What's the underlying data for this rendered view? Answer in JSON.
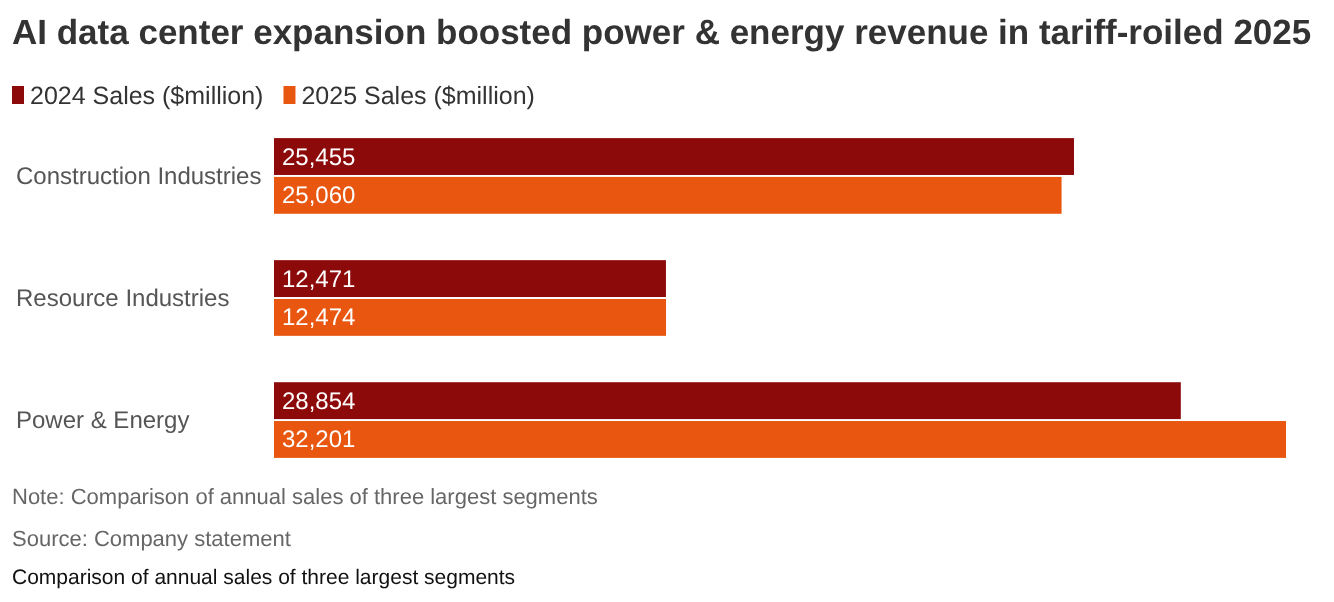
{
  "chart_data": {
    "type": "bar",
    "orientation": "horizontal",
    "title": "AI data center expansion boosted power & energy revenue in tariff-roiled 2025",
    "categories": [
      "Construction Industries",
      "Resource Industries",
      "Power & Energy"
    ],
    "series": [
      {
        "name": "2024 Sales ($million)",
        "color": "#8c0a0a",
        "values": [
          25455,
          12471,
          28854
        ],
        "value_labels": [
          "25,455",
          "12,471",
          "28,854"
        ]
      },
      {
        "name": "2025 Sales ($million)",
        "color": "#e8560f",
        "values": [
          25060,
          12474,
          32201
        ],
        "value_labels": [
          "25,060",
          "12,474",
          "32,201"
        ]
      }
    ],
    "legend": "top left",
    "annotations": [
      "Note: Comparison of annual sales of three largest segments",
      "Source: Company statement",
      "Comparison of annual sales of three largest segments"
    ]
  }
}
